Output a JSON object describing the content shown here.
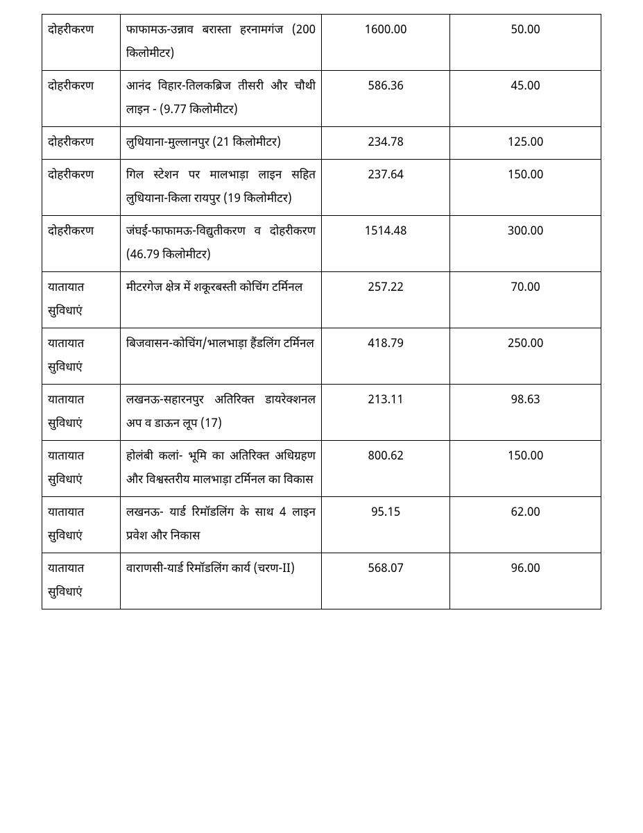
{
  "table": {
    "columns": [
      {
        "key": "category",
        "align": "left",
        "width_pct": 14
      },
      {
        "key": "description",
        "align": "justify",
        "width_pct": 36
      },
      {
        "key": "value1",
        "align": "center",
        "width_pct": 23
      },
      {
        "key": "value2",
        "align": "center",
        "width_pct": 27
      }
    ],
    "border_color": "#000000",
    "background_color": "#ffffff",
    "text_color": "#000000",
    "font_size_pt": 13,
    "rows": [
      {
        "category": "दोहरीकरण",
        "description": "फाफामऊ-उन्नाव बरास्ता हरनामगंज (200 किलोमीटर)",
        "value1": "1600.00",
        "value2": "50.00"
      },
      {
        "category": "दोहरीकरण",
        "description": "आनंद विहार-तिलकब्रिज तीसरी और चौथी लाइन - (9.77 किलोमीटर)",
        "value1": "586.36",
        "value2": "45.00"
      },
      {
        "category": "दोहरीकरण",
        "description": "लुधियाना-मुल्लानपुर (21 किलोमीटर)",
        "value1": "234.78",
        "value2": "125.00"
      },
      {
        "category": "दोहरीकरण",
        "description": "गिल स्टेशन पर मालभाड़ा लाइन सहित लुधियाना-किला रायपुर (19 किलोमीटर)",
        "value1": "237.64",
        "value2": "150.00"
      },
      {
        "category": "दोहरीकरण",
        "description": "जंघई-फाफामऊ-विद्युतीकरण व दोहरीकरण (46.79 किलोमीटर)",
        "value1": "1514.48",
        "value2": "300.00"
      },
      {
        "category": "यातायात सुविधाएं",
        "description": "मीटरगेज क्षेत्र में शकूरबस्ती कोचिंग टर्मिनल",
        "value1": "257.22",
        "value2": "70.00"
      },
      {
        "category": "यातायात सुविधाएं",
        "description": "बिजवासन-कोचिंग/भालभाड़ा हैंडलिंग टर्मिनल",
        "value1": "418.79",
        "value2": "250.00"
      },
      {
        "category": "यातायात सुविधाएं",
        "description": "लखनऊ-सहारनपुर अतिरिक्त डायरेक्शनल अप व डाऊन लूप (17)",
        "value1": "213.11",
        "value2": "98.63"
      },
      {
        "category": "यातायात सुविधाएं",
        "description": "होलंबी कलां- भूमि का अतिरिक्त अधिग्रहण और विश्वस्तरीय मालभाड़ा टर्मिनल का विकास",
        "value1": "800.62",
        "value2": "150.00"
      },
      {
        "category": "यातायात सुविधाएं",
        "description": "लखनऊ- यार्ड रिमॉडलिंग के साथ 4 लाइन प्रवेश और निकास",
        "value1": "95.15",
        "value2": "62.00"
      },
      {
        "category": "यातायात सुविधाएं",
        "description": "वाराणसी-यार्ड रिमॉडलिंग कार्य (चरण-II)",
        "value1": "568.07",
        "value2": "96.00"
      }
    ]
  }
}
